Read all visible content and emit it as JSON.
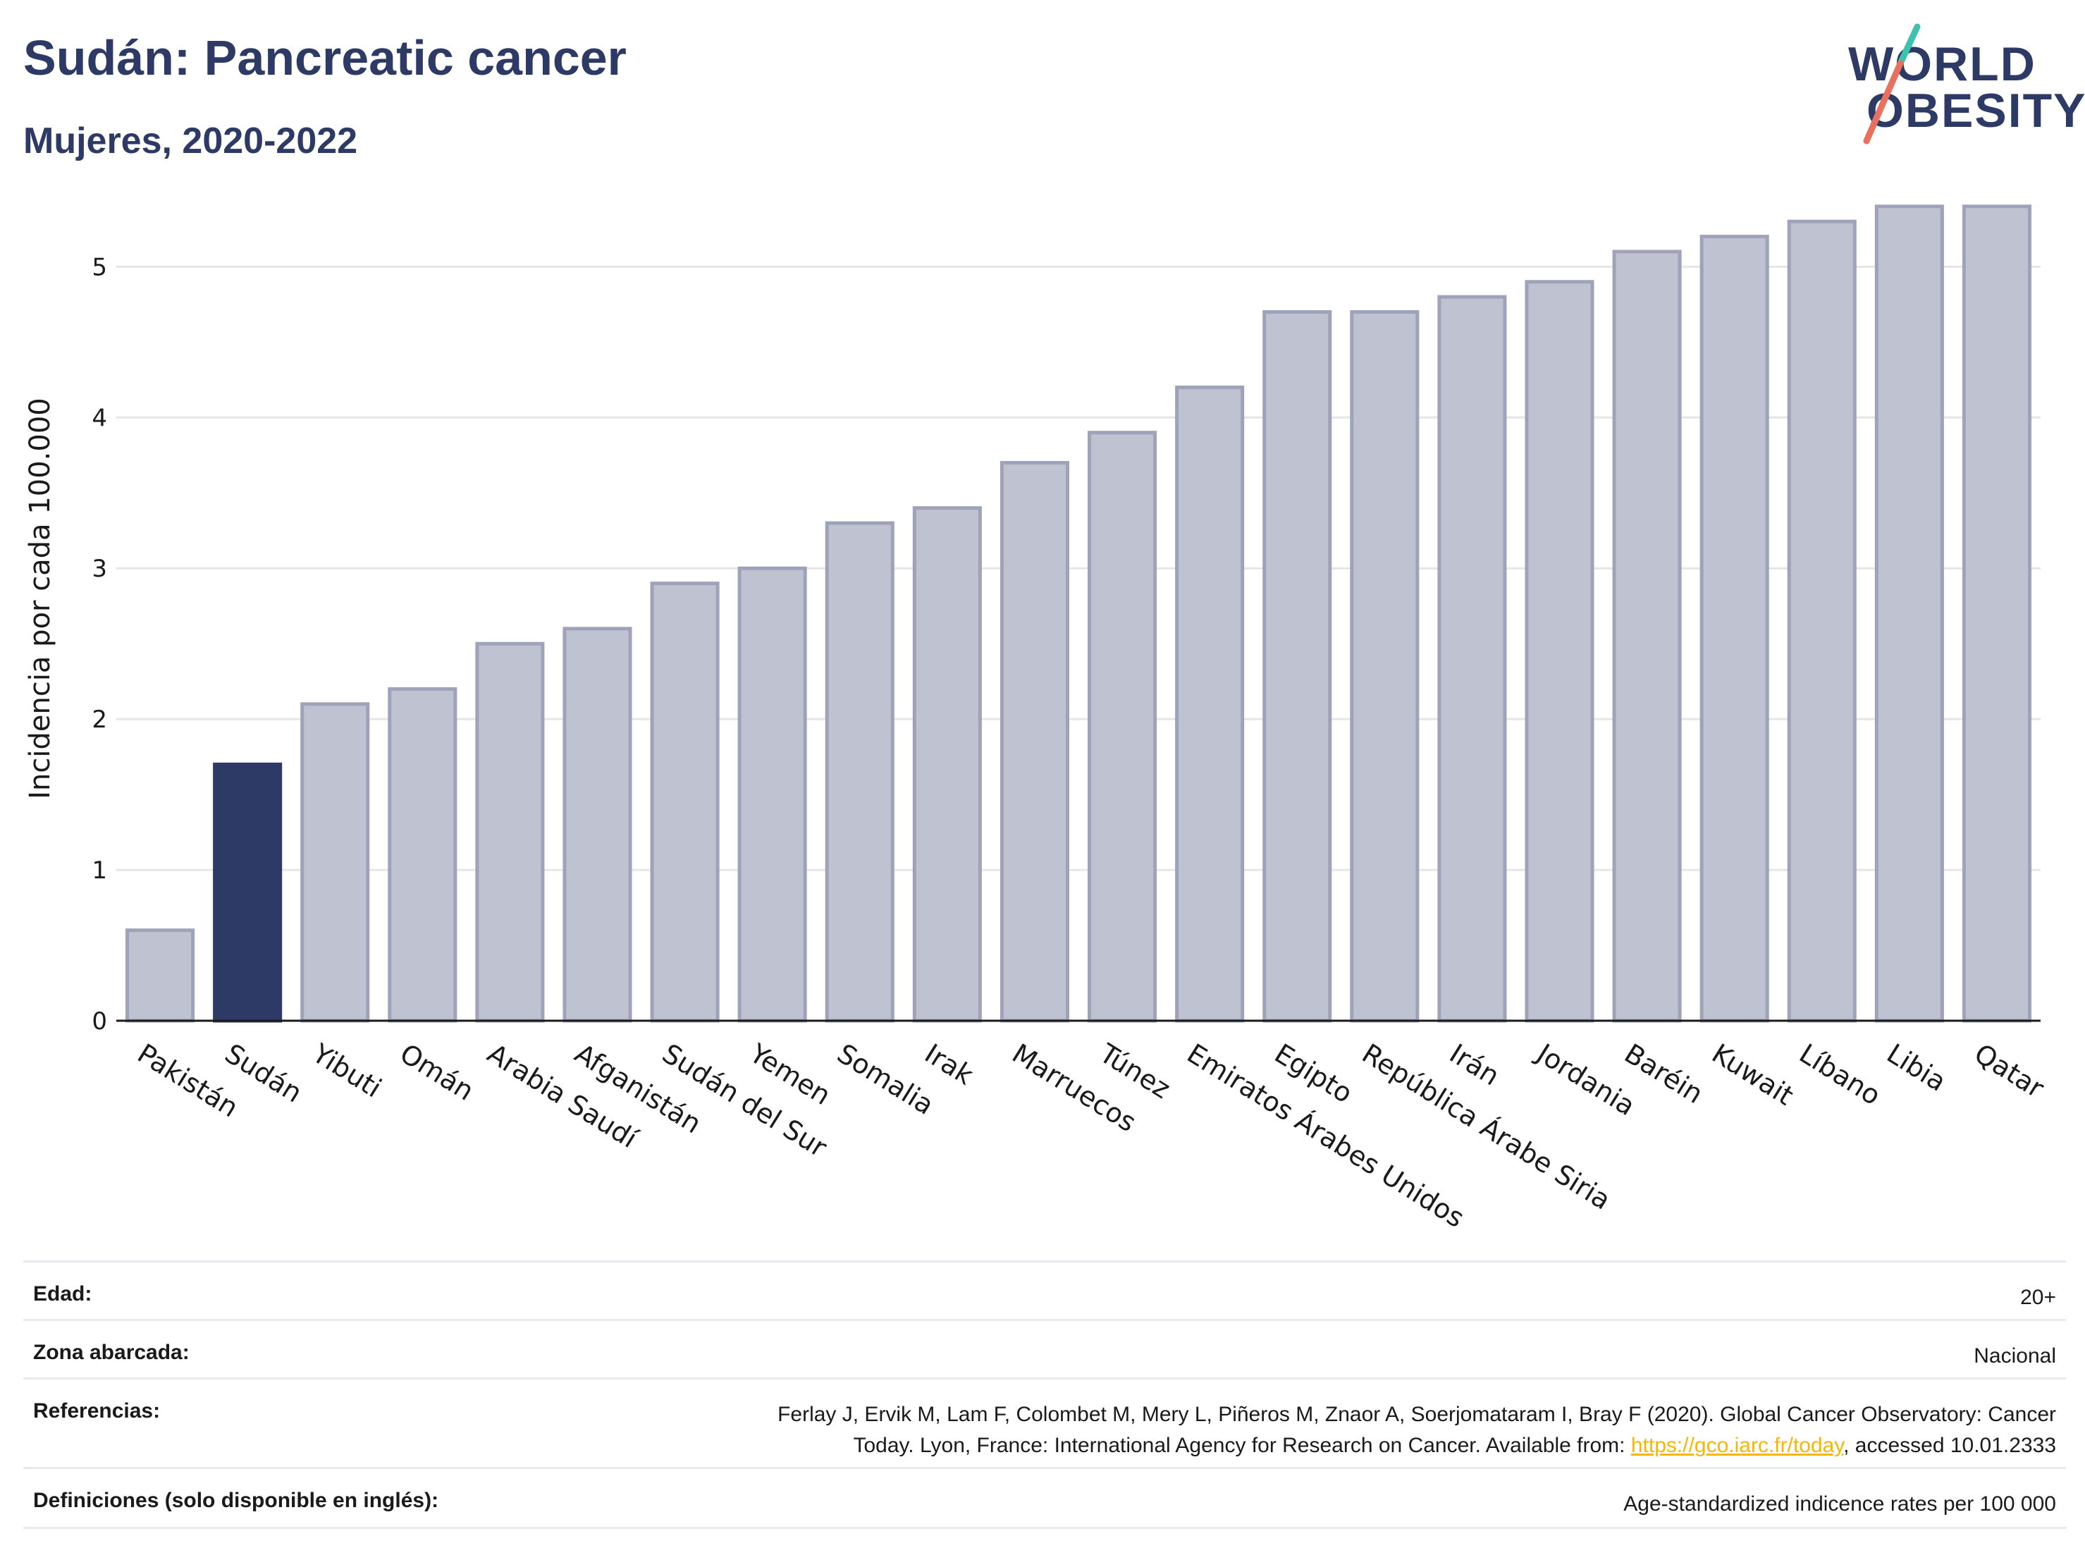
{
  "header": {
    "title": "Sudán: Pancreatic cancer",
    "subtitle": "Mujeres, 2020-2022"
  },
  "logo": {
    "line1": "WORLD",
    "line2": "OBESITY",
    "slash_colors": [
      "#3fc1b0",
      "#e8705f"
    ]
  },
  "colors": {
    "highlight": "#2d3a66",
    "bar_fill": "#bfc2d0",
    "bar_stroke": "#9ea3ba",
    "grid": "#e6e6e6"
  },
  "chart_data": {
    "type": "bar",
    "ylabel": "Incidencia por cada 100.000",
    "ylim": [
      0,
      5.6
    ],
    "yticks": [
      0,
      1,
      2,
      3,
      4,
      5
    ],
    "grid": true,
    "highlight_category": "Sudán",
    "categories": [
      "Pakistán",
      "Sudán",
      "Yibuti",
      "Omán",
      "Arabia Saudí",
      "Afganistán",
      "Sudán del Sur",
      "Yemen",
      "Somalia",
      "Irak",
      "Marruecos",
      "Túnez",
      "Emiratos Árabes Unidos",
      "Egipto",
      "República Árabe Siria",
      "Irán",
      "Jordania",
      "Baréin",
      "Kuwait",
      "Líbano",
      "Libia",
      "Qatar"
    ],
    "values": [
      0.6,
      1.7,
      2.1,
      2.2,
      2.5,
      2.6,
      2.9,
      3.0,
      3.3,
      3.4,
      3.7,
      3.9,
      4.2,
      4.7,
      4.7,
      4.8,
      4.9,
      5.1,
      5.2,
      5.3,
      5.4,
      5.4
    ]
  },
  "meta": {
    "age_label": "Edad:",
    "age_value": "20+",
    "area_label": "Zona abarcada:",
    "area_value": "Nacional",
    "refs_label": "Referencias:",
    "refs_line1": "Ferlay J, Ervik M, Lam F, Colombet M, Mery L, Piñeros M, Znaor A, Soerjomataram I, Bray F (2020). Global Cancer Observatory: Cancer",
    "refs_line2_pre": "Today. Lyon, France: International Agency for Research on Cancer. Available from: ",
    "refs_link": "https://gco.iarc.fr/today",
    "refs_line2_post": ", accessed 10.01.2333",
    "defs_label": "Definiciones (solo disponible en inglés):",
    "defs_value": "Age-standardized indicence rates per 100 000"
  }
}
